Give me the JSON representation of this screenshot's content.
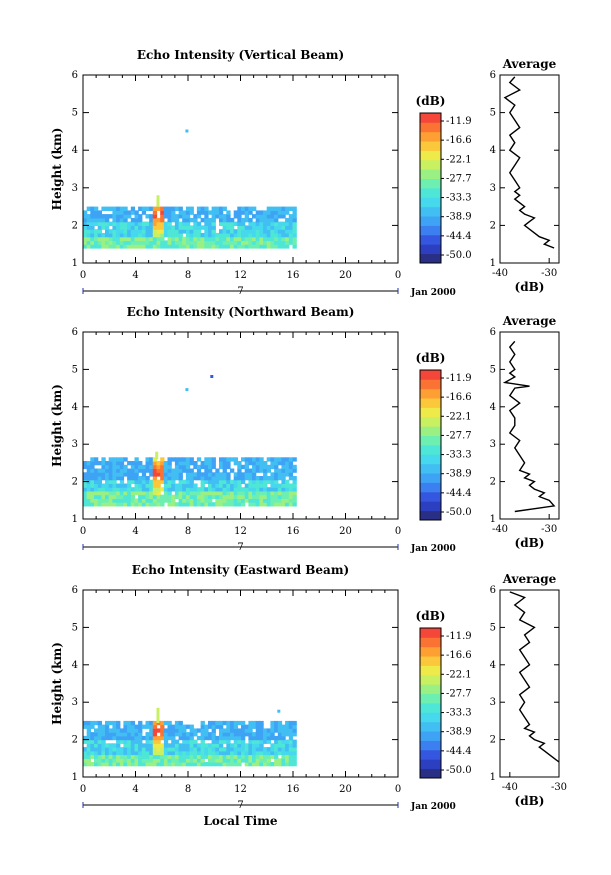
{
  "page": {
    "x_label": "Local Time",
    "date_label": "Jan 2000",
    "day_label": "7"
  },
  "chart_data": [
    {
      "type": "heatmap",
      "title": "Echo Intensity (Vertical Beam)",
      "ylabel": "Height (km)",
      "xlim": [
        0,
        24
      ],
      "ylim": [
        1,
        6
      ],
      "x_ticks": [
        "0",
        "4",
        "8",
        "12",
        "16",
        "20",
        "0"
      ],
      "y_ticks": [
        "1",
        "2",
        "3",
        "4",
        "5",
        "6"
      ],
      "colorbar_unit": "(dB)",
      "colorbar_ticks": [
        "-11.9",
        "-16.6",
        "-22.1",
        "-27.7",
        "-33.3",
        "-38.9",
        "-44.4",
        "-50.0"
      ],
      "data_extent": {
        "x": [
          0,
          16
        ],
        "y": [
          1.4,
          2.5
        ]
      },
      "hotspot": {
        "x": 5.7,
        "y": [
          1.7,
          2.8
        ]
      },
      "isolated_points": [
        {
          "x": 7.8,
          "y": 4.55
        }
      ],
      "profile": {
        "title": "Average",
        "xlabel": "(dB)",
        "xlim": [
          -40,
          -28
        ],
        "x_ticks": [
          "-40",
          "-30"
        ],
        "y_ticks": [
          "1",
          "2",
          "3",
          "4",
          "5",
          "6"
        ],
        "height": [
          1.4,
          1.5,
          1.6,
          1.7,
          1.8,
          1.9,
          2.0,
          2.1,
          2.2,
          2.3,
          2.4,
          2.5,
          2.6,
          2.7,
          2.8,
          2.9,
          3.0,
          3.2,
          3.4,
          3.6,
          3.8,
          4.0,
          4.2,
          4.4,
          4.6,
          4.8,
          5.0,
          5.2,
          5.4,
          5.6,
          5.8,
          5.95
        ],
        "values": [
          -29,
          -31,
          -30,
          -32,
          -33,
          -34,
          -35,
          -34,
          -33,
          -35,
          -36,
          -35,
          -36,
          -37,
          -36,
          -37,
          -36,
          -37,
          -38,
          -37,
          -36,
          -38,
          -37,
          -38,
          -36,
          -37,
          -38,
          -37,
          -39,
          -36,
          -38,
          -37
        ]
      }
    },
    {
      "type": "heatmap",
      "title": "Echo Intensity (Northward Beam)",
      "ylabel": "Height (km)",
      "xlim": [
        0,
        24
      ],
      "ylim": [
        1,
        6
      ],
      "x_ticks": [
        "0",
        "4",
        "8",
        "12",
        "16",
        "20",
        "0"
      ],
      "y_ticks": [
        "1",
        "2",
        "3",
        "4",
        "5",
        "6"
      ],
      "colorbar_unit": "(dB)",
      "colorbar_ticks": [
        "-11.9",
        "-16.6",
        "-22.1",
        "-27.7",
        "-33.3",
        "-38.9",
        "-44.4",
        "-50.0"
      ],
      "data_extent": {
        "x": [
          0,
          16
        ],
        "y": [
          1.35,
          2.6
        ]
      },
      "hotspot": {
        "x": 5.6,
        "y": [
          1.6,
          2.8
        ]
      },
      "isolated_points": [
        {
          "x": 7.8,
          "y": 4.5
        },
        {
          "x": 9.7,
          "y": 4.85
        }
      ],
      "profile": {
        "title": "Average",
        "xlabel": "(dB)",
        "xlim": [
          -40,
          -28
        ],
        "x_ticks": [
          "-40",
          "-30"
        ],
        "y_ticks": [
          "1",
          "2",
          "3",
          "4",
          "5",
          "6"
        ],
        "height": [
          1.2,
          1.35,
          1.5,
          1.6,
          1.7,
          1.8,
          1.9,
          2.0,
          2.1,
          2.2,
          2.3,
          2.5,
          2.7,
          2.9,
          3.1,
          3.3,
          3.5,
          3.7,
          3.9,
          4.1,
          4.3,
          4.5,
          4.55,
          4.65,
          4.8,
          4.9,
          5.0,
          5.2,
          5.4,
          5.6,
          5.75
        ],
        "values": [
          -37,
          -29,
          -30,
          -32,
          -31,
          -33,
          -34,
          -33,
          -35,
          -34,
          -36,
          -35,
          -36,
          -37,
          -36,
          -38,
          -37,
          -37,
          -38,
          -36,
          -38,
          -37,
          -34,
          -39,
          -37,
          -38,
          -37,
          -38,
          -37,
          -38,
          -37
        ]
      }
    },
    {
      "type": "heatmap",
      "title": "Echo Intensity (Eastward Beam)",
      "ylabel": "Height (km)",
      "xlim": [
        0,
        24
      ],
      "ylim": [
        1,
        6
      ],
      "x_ticks": [
        "0",
        "4",
        "8",
        "12",
        "16",
        "20",
        "0"
      ],
      "y_ticks": [
        "1",
        "2",
        "3",
        "4",
        "5",
        "6"
      ],
      "colorbar_unit": "(dB)",
      "colorbar_ticks": [
        "-11.9",
        "-16.6",
        "-22.1",
        "-27.7",
        "-33.3",
        "-38.9",
        "-44.4",
        "-50.0"
      ],
      "data_extent": {
        "x": [
          0,
          16
        ],
        "y": [
          1.3,
          2.45
        ]
      },
      "hotspot": {
        "x": 5.7,
        "y": [
          1.6,
          2.8
        ]
      },
      "isolated_points": [
        {
          "x": 14.8,
          "y": 2.8
        }
      ],
      "profile": {
        "title": "Average",
        "xlabel": "(dB)",
        "xlim": [
          -42,
          -30
        ],
        "x_ticks": [
          "-40",
          "-30"
        ],
        "y_ticks": [
          "1",
          "2",
          "3",
          "4",
          "5",
          "6"
        ],
        "height": [
          1.4,
          1.5,
          1.6,
          1.7,
          1.8,
          1.9,
          2.0,
          2.1,
          2.2,
          2.3,
          2.4,
          2.6,
          2.8,
          3.0,
          3.2,
          3.4,
          3.6,
          3.8,
          4.0,
          4.2,
          4.4,
          4.6,
          4.8,
          5.0,
          5.2,
          5.4,
          5.6,
          5.8,
          5.95
        ],
        "values": [
          -30,
          -31,
          -32,
          -33,
          -34,
          -33,
          -35,
          -36,
          -35,
          -37,
          -36,
          -37,
          -38,
          -37,
          -38,
          -36,
          -37,
          -38,
          -36,
          -37,
          -38,
          -36,
          -37,
          -35,
          -38,
          -37,
          -39,
          -37,
          -40
        ]
      }
    }
  ]
}
